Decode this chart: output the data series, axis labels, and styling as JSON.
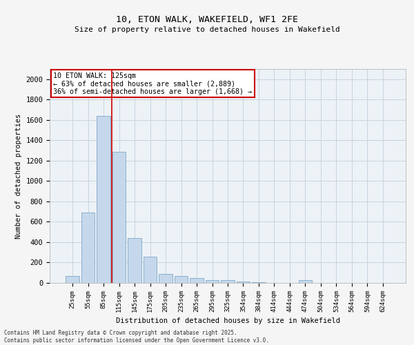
{
  "title1": "10, ETON WALK, WAKEFIELD, WF1 2FE",
  "title2": "Size of property relative to detached houses in Wakefield",
  "xlabel": "Distribution of detached houses by size in Wakefield",
  "ylabel": "Number of detached properties",
  "categories": [
    "25sqm",
    "55sqm",
    "85sqm",
    "115sqm",
    "145sqm",
    "175sqm",
    "205sqm",
    "235sqm",
    "265sqm",
    "295sqm",
    "325sqm",
    "354sqm",
    "384sqm",
    "414sqm",
    "444sqm",
    "474sqm",
    "504sqm",
    "534sqm",
    "564sqm",
    "594sqm",
    "624sqm"
  ],
  "values": [
    65,
    690,
    1640,
    1290,
    440,
    255,
    90,
    65,
    45,
    30,
    25,
    15,
    5,
    0,
    0,
    30,
    0,
    0,
    0,
    0,
    0
  ],
  "bar_color": "#c5d8eb",
  "bar_edge_color": "#8ab0cc",
  "grid_color": "#c8d4de",
  "background_color": "#e8eef4",
  "plot_bg_color": "#edf2f7",
  "annotation_text": "10 ETON WALK: 125sqm\n← 63% of detached houses are smaller (2,889)\n36% of semi-detached houses are larger (1,668) →",
  "annotation_box_color": "#ffffff",
  "annotation_box_edge": "#cc0000",
  "vline_x": 2.55,
  "ylim": [
    0,
    2100
  ],
  "yticks": [
    0,
    200,
    400,
    600,
    800,
    1000,
    1200,
    1400,
    1600,
    1800,
    2000
  ],
  "footer1": "Contains HM Land Registry data © Crown copyright and database right 2025.",
  "footer2": "Contains public sector information licensed under the Open Government Licence v3.0."
}
